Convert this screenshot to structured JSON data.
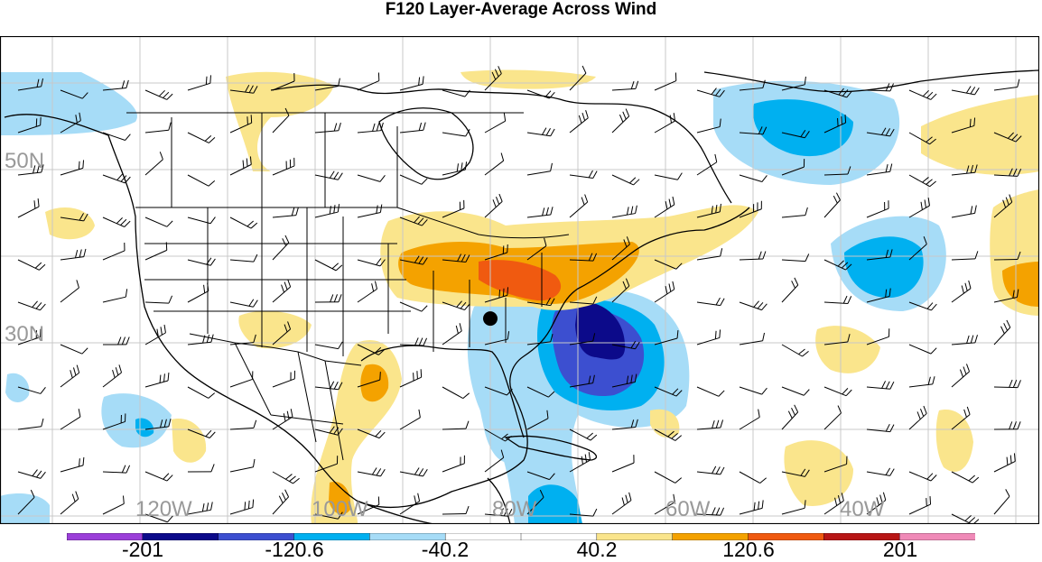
{
  "title": "F120 Layer-Average Across Wind",
  "lat_labels": [
    {
      "text": "50N",
      "lat": 50
    },
    {
      "text": "30N",
      "lat": 30
    }
  ],
  "lon_labels": [
    {
      "text": "120W",
      "lon": -120
    },
    {
      "text": "100W",
      "lon": -100
    },
    {
      "text": "80W",
      "lon": -80
    },
    {
      "text": "60W",
      "lon": -60
    },
    {
      "text": "40W",
      "lon": -40
    }
  ],
  "colorbar": {
    "colors": [
      "#9b3fd9",
      "#0c0a8a",
      "#3c4fd0",
      "#00b0f0",
      "#a6dcf7",
      "#ffffff",
      "#ffffff",
      "#fae58c",
      "#f4a200",
      "#f05a10",
      "#b81616",
      "#f08ab8"
    ],
    "labels": [
      "-201",
      "-120.6",
      "-40.2",
      "40.2",
      "120.6",
      "201"
    ]
  },
  "station_marker": {
    "lat": 32.8,
    "lon": -80.0
  },
  "colors": {
    "neg_strong": "#0c0a8a",
    "neg_mid": "#3c4fd0",
    "neg_moderate": "#00b0f0",
    "neg_weak": "#a6dcf7",
    "pos_weak": "#fae58c",
    "pos_moderate": "#f4a200",
    "pos_mid": "#f05a10",
    "pos_strong": "#b81616"
  }
}
